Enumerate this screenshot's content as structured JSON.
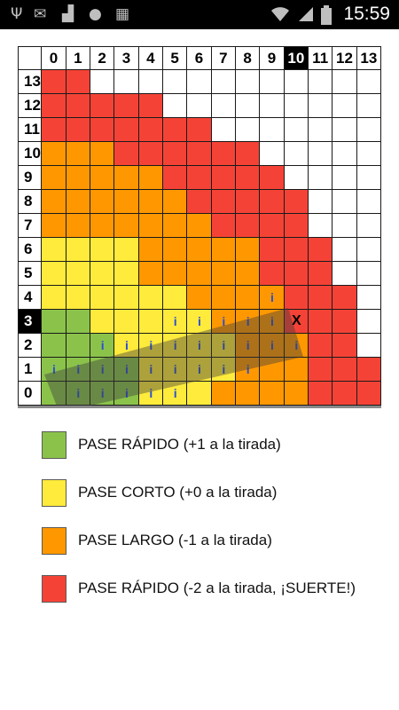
{
  "status_bar": {
    "time": "15:59",
    "left_icons": [
      "usb-icon",
      "message-icon",
      "signal-chart-icon",
      "chat-bubble-icon",
      "photo-icon"
    ],
    "right_icons": [
      "wifi-icon",
      "cellular-signal-icon",
      "battery-icon"
    ]
  },
  "colors": {
    "green": "#8bc34a",
    "yellow": "#ffeb3b",
    "orange": "#ff9800",
    "red": "#f44336",
    "white": "#ffffff",
    "mark": "#2b4fd3"
  },
  "grid": {
    "columns": [
      "0",
      "1",
      "2",
      "3",
      "4",
      "5",
      "6",
      "7",
      "8",
      "9",
      "10",
      "11",
      "12",
      "13"
    ],
    "rows": [
      "13",
      "12",
      "11",
      "10",
      "9",
      "8",
      "7",
      "6",
      "5",
      "4",
      "3",
      "2",
      "1",
      "0"
    ],
    "highlight_column": "10",
    "highlight_row": "3",
    "cells": [
      [
        "R",
        "R",
        "W",
        "W",
        "W",
        "W",
        "W",
        "W",
        "W",
        "W",
        "W",
        "W",
        "W",
        "W"
      ],
      [
        "R",
        "R",
        "R",
        "R",
        "R",
        "W",
        "W",
        "W",
        "W",
        "W",
        "W",
        "W",
        "W",
        "W"
      ],
      [
        "R",
        "R",
        "R",
        "R",
        "R",
        "R",
        "R",
        "W",
        "W",
        "W",
        "W",
        "W",
        "W",
        "W"
      ],
      [
        "O",
        "O",
        "O",
        "R",
        "R",
        "R",
        "R",
        "R",
        "R",
        "W",
        "W",
        "W",
        "W",
        "W"
      ],
      [
        "O",
        "O",
        "O",
        "O",
        "O",
        "R",
        "R",
        "R",
        "R",
        "R",
        "W",
        "W",
        "W",
        "W"
      ],
      [
        "O",
        "O",
        "O",
        "O",
        "O",
        "O",
        "R",
        "R",
        "R",
        "R",
        "R",
        "W",
        "W",
        "W"
      ],
      [
        "O",
        "O",
        "O",
        "O",
        "O",
        "O",
        "O",
        "R",
        "R",
        "R",
        "R",
        "W",
        "W",
        "W"
      ],
      [
        "Y",
        "Y",
        "Y",
        "Y",
        "O",
        "O",
        "O",
        "O",
        "O",
        "R",
        "R",
        "R",
        "W",
        "W"
      ],
      [
        "Y",
        "Y",
        "Y",
        "Y",
        "O",
        "O",
        "O",
        "O",
        "O",
        "R",
        "R",
        "R",
        "W",
        "W"
      ],
      [
        "Y",
        "Y",
        "Y",
        "Y",
        "Y",
        "Y",
        "O",
        "O",
        "O",
        "O",
        "R",
        "R",
        "R",
        "W"
      ],
      [
        "G",
        "G",
        "Y",
        "Y",
        "Y",
        "Y",
        "Y",
        "O",
        "O",
        "O",
        "R",
        "R",
        "R",
        "W"
      ],
      [
        "G",
        "G",
        "G",
        "Y",
        "Y",
        "Y",
        "Y",
        "Y",
        "O",
        "O",
        "O",
        "R",
        "R",
        "W"
      ],
      [
        "G",
        "G",
        "G",
        "G",
        "Y",
        "Y",
        "Y",
        "Y",
        "O",
        "O",
        "O",
        "R",
        "R",
        "R"
      ],
      [
        "G",
        "G",
        "G",
        "G",
        "Y",
        "Y",
        "Y",
        "O",
        "O",
        "O",
        "O",
        "R",
        "R",
        "R"
      ]
    ],
    "marks": [
      {
        "row": "4",
        "col": "9",
        "text": "i"
      },
      {
        "row": "3",
        "col": "5",
        "text": "i"
      },
      {
        "row": "3",
        "col": "6",
        "text": "i"
      },
      {
        "row": "3",
        "col": "7",
        "text": "i"
      },
      {
        "row": "3",
        "col": "8",
        "text": "i"
      },
      {
        "row": "3",
        "col": "9",
        "text": "i"
      },
      {
        "row": "3",
        "col": "10",
        "text": "X"
      },
      {
        "row": "2",
        "col": "2",
        "text": "i"
      },
      {
        "row": "2",
        "col": "3",
        "text": "i"
      },
      {
        "row": "2",
        "col": "4",
        "text": "i"
      },
      {
        "row": "2",
        "col": "5",
        "text": "i"
      },
      {
        "row": "2",
        "col": "6",
        "text": "i"
      },
      {
        "row": "2",
        "col": "7",
        "text": "i"
      },
      {
        "row": "2",
        "col": "8",
        "text": "i"
      },
      {
        "row": "2",
        "col": "9",
        "text": "i"
      },
      {
        "row": "2",
        "col": "10",
        "text": "i"
      },
      {
        "row": "1",
        "col": "0",
        "text": "i"
      },
      {
        "row": "1",
        "col": "1",
        "text": "i"
      },
      {
        "row": "1",
        "col": "2",
        "text": "i"
      },
      {
        "row": "1",
        "col": "3",
        "text": "i"
      },
      {
        "row": "1",
        "col": "4",
        "text": "i"
      },
      {
        "row": "1",
        "col": "5",
        "text": "i"
      },
      {
        "row": "1",
        "col": "6",
        "text": "i"
      },
      {
        "row": "1",
        "col": "7",
        "text": "i"
      },
      {
        "row": "1",
        "col": "8",
        "text": "i"
      },
      {
        "row": "0",
        "col": "1",
        "text": "i"
      },
      {
        "row": "0",
        "col": "2",
        "text": "i"
      },
      {
        "row": "0",
        "col": "3",
        "text": "i"
      },
      {
        "row": "0",
        "col": "4",
        "text": "i"
      },
      {
        "row": "0",
        "col": "5",
        "text": "i"
      }
    ]
  },
  "legend": [
    {
      "color": "green",
      "label": "PASE RÁPIDO (+1 a la tirada)"
    },
    {
      "color": "yellow",
      "label": "PASE CORTO (+0 a la tirada)"
    },
    {
      "color": "orange",
      "label": "PASE LARGO (-1 a la tirada)"
    },
    {
      "color": "red",
      "label": "PASE RÁPIDO (-2 a la tirada, ¡SUERTE!)"
    }
  ]
}
